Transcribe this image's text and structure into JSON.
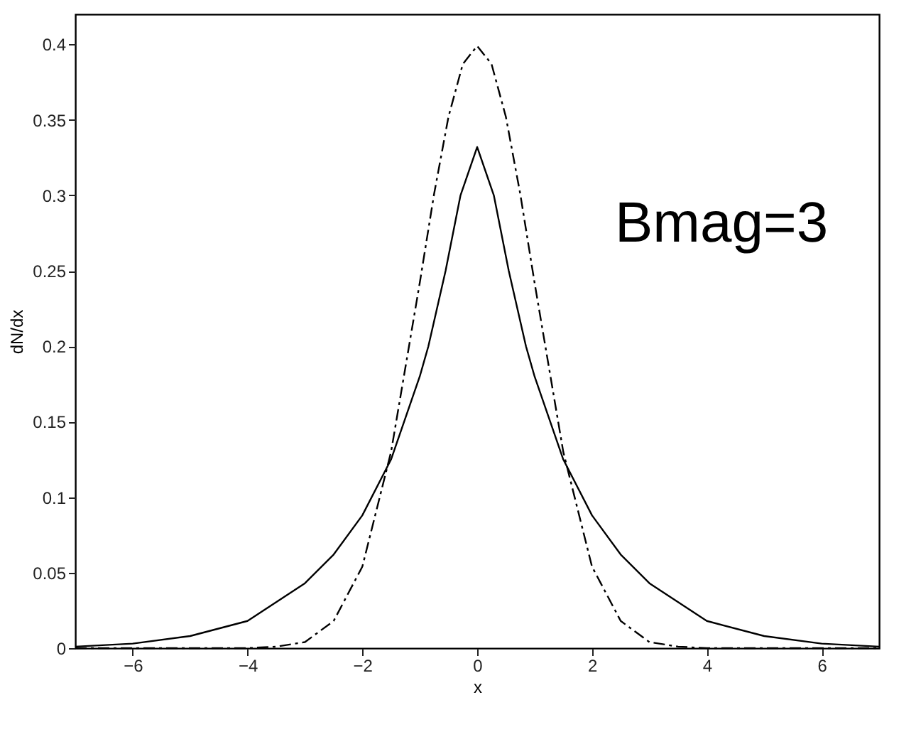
{
  "chart_data": {
    "type": "line",
    "xlabel": "x",
    "ylabel": "dN/dx",
    "xlim": [
      -7,
      7
    ],
    "ylim": [
      0,
      0.42
    ],
    "xticks": [
      -6,
      -4,
      -2,
      0,
      2,
      4,
      6
    ],
    "yticks": [
      0,
      0.05,
      0.1,
      0.15,
      0.2,
      0.25,
      0.3,
      0.35,
      0.4
    ],
    "grid": false,
    "marker": "none",
    "annotations": [
      "Bmag=3"
    ],
    "series": [
      {
        "color": "#000000",
        "line_style": "solid",
        "x": [
          -7,
          -6,
          -5,
          -4,
          -3,
          -2.5,
          -2,
          -1.5,
          -1,
          -0.85,
          -0.55,
          -0.29,
          0,
          0.29,
          0.55,
          0.85,
          1,
          1.5,
          2,
          2.5,
          3,
          4,
          5,
          6,
          7
        ],
        "values": [
          0.001,
          0.003,
          0.008,
          0.018,
          0.043,
          0.062,
          0.088,
          0.125,
          0.18,
          0.2,
          0.25,
          0.3,
          0.332,
          0.3,
          0.25,
          0.2,
          0.18,
          0.125,
          0.088,
          0.062,
          0.043,
          0.018,
          0.008,
          0.003,
          0.001
        ]
      },
      {
        "color": "#000000",
        "line_style": "dashed",
        "x": [
          -7,
          -6,
          -5,
          -4,
          -3.5,
          -3,
          -2.5,
          -2,
          -1.5,
          -1,
          -0.75,
          -0.5,
          -0.25,
          0,
          0.25,
          0.5,
          0.75,
          1,
          1.5,
          2,
          2.5,
          3,
          3.5,
          4,
          5,
          6,
          7
        ],
        "values": [
          0,
          0,
          0,
          0,
          0.001,
          0.004,
          0.018,
          0.054,
          0.13,
          0.242,
          0.301,
          0.352,
          0.387,
          0.399,
          0.387,
          0.352,
          0.301,
          0.242,
          0.13,
          0.054,
          0.018,
          0.004,
          0.001,
          0,
          0,
          0,
          0
        ]
      }
    ]
  }
}
